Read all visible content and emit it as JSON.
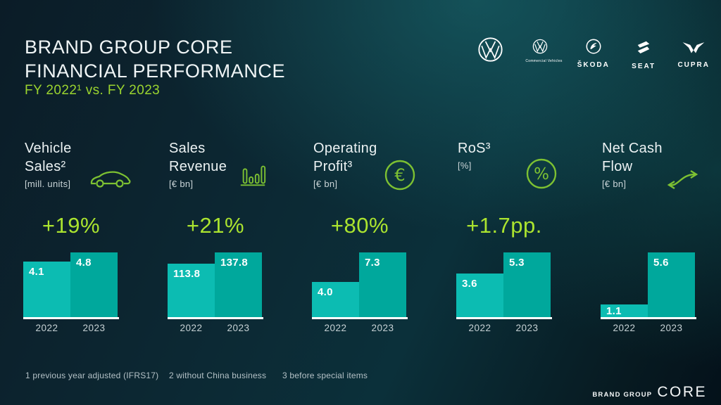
{
  "header": {
    "title_line1": "BRAND GROUP CORE",
    "title_line2": "FINANCIAL PERFORMANCE",
    "subtitle": "FY 2022¹ vs. FY 2023"
  },
  "brand_logos": [
    {
      "name": "Volkswagen",
      "label": ""
    },
    {
      "name": "Volkswagen Commercial Vehicles",
      "label": "Commercial Vehicles"
    },
    {
      "name": "Skoda",
      "label": "ŠKODA"
    },
    {
      "name": "SEAT",
      "label": "SEAT"
    },
    {
      "name": "CUPRA",
      "label": "CUPRA"
    }
  ],
  "chart_data": [
    {
      "type": "bar",
      "title_lines": [
        "Vehicle",
        "Sales²"
      ],
      "unit": "[mill. units]",
      "icon": "car-icon",
      "change": "+19%",
      "categories": [
        "2022",
        "2023"
      ],
      "values": [
        4.1,
        4.8
      ],
      "value_labels": [
        "4.1",
        "4.8"
      ]
    },
    {
      "type": "bar",
      "title_lines": [
        "Sales",
        "Revenue"
      ],
      "unit": "[€ bn]",
      "icon": "bar-chart-icon",
      "change": "+21%",
      "categories": [
        "2022",
        "2023"
      ],
      "values": [
        113.8,
        137.8
      ],
      "value_labels": [
        "113.8",
        "137.8"
      ]
    },
    {
      "type": "bar",
      "title_lines": [
        "Operating",
        "Profit³"
      ],
      "unit": "[€ bn]",
      "icon": "euro-icon",
      "change": "+80%",
      "categories": [
        "2022",
        "2023"
      ],
      "values": [
        4.0,
        7.3
      ],
      "value_labels": [
        "4.0",
        "7.3"
      ]
    },
    {
      "type": "bar",
      "title_lines": [
        "RoS³"
      ],
      "unit": "[%]",
      "icon": "percent-icon",
      "change": "+1.7pp.",
      "categories": [
        "2022",
        "2023"
      ],
      "values": [
        3.6,
        5.3
      ],
      "value_labels": [
        "3.6",
        "5.3"
      ]
    },
    {
      "type": "bar",
      "title_lines": [
        "Net Cash",
        "Flow"
      ],
      "unit": "[€ bn]",
      "icon": "cash-flow-icon",
      "change": "",
      "categories": [
        "2022",
        "2023"
      ],
      "values": [
        1.1,
        5.6
      ],
      "value_labels": [
        "1.1",
        "5.6"
      ]
    }
  ],
  "footnotes": [
    "1 previous year adjusted (IFRS17)",
    "2 without China business",
    "3 before special items"
  ],
  "footer_logo": {
    "brand_group": "BRAND GROUP",
    "core": "CORE"
  },
  "colors": {
    "accent_green": "#9bd42f",
    "percent_green": "#abe42f",
    "icon_green": "#7dc132",
    "bar_2022": "#0cbcb2",
    "bar_2023": "#00a89c",
    "background_dark": "#0b1c27",
    "background_teal": "#0b303a",
    "text_white": "#eef4f5",
    "text_muted": "#c9d4d7"
  }
}
